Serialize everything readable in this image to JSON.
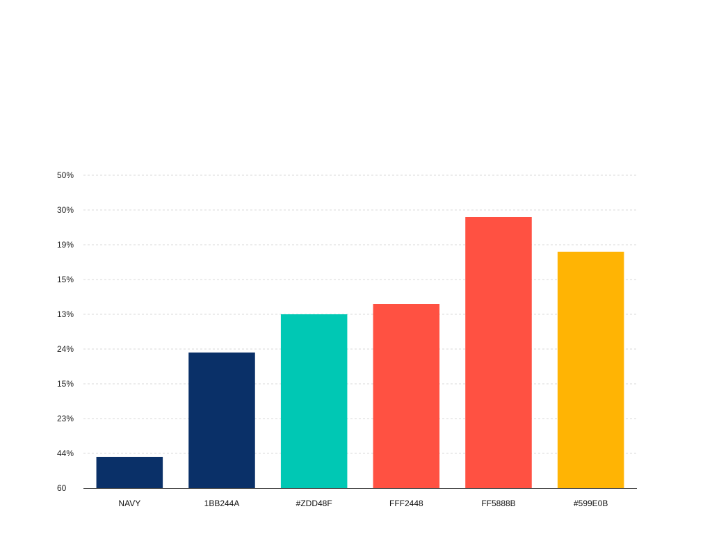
{
  "chart_data": {
    "type": "bar",
    "title": "",
    "xlabel": "",
    "ylabel": "",
    "categories": [
      "NAVY",
      "1BB244A",
      "#ZDD48F",
      "FFF2448",
      "FF5888B",
      "#599E0B"
    ],
    "values": [
      0.9,
      3.9,
      5.0,
      5.3,
      7.8,
      6.8
    ],
    "ylim": [
      0,
      9
    ],
    "y_tick_labels": [
      "60",
      "44%",
      "23%",
      "15%",
      "24%",
      "13%",
      "15%",
      "19%",
      "30%",
      "50%"
    ],
    "y_tick_values": [
      0,
      1,
      2,
      3,
      4,
      5,
      6,
      7,
      8,
      9
    ],
    "grid": true,
    "legend": "none",
    "bar_colors": [
      "#0A3068",
      "#0A3068",
      "#00C8B4",
      "#FF5142",
      "#FF5142",
      "#FFB404"
    ]
  }
}
